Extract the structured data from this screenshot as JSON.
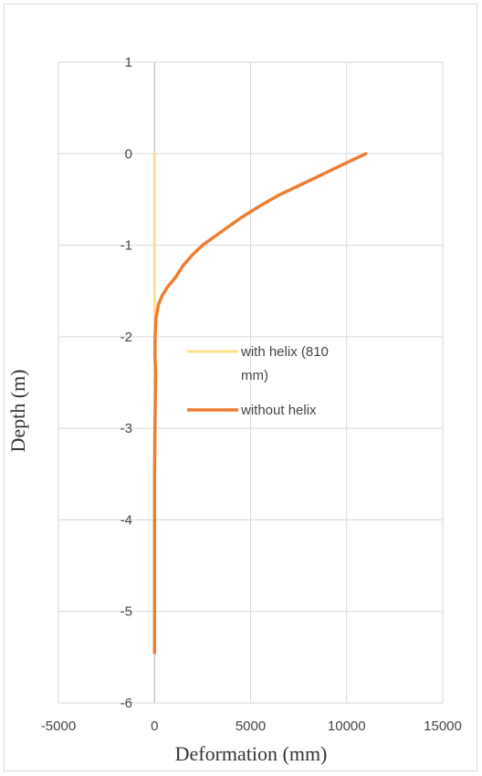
{
  "chart_data": {
    "type": "line",
    "title": "",
    "xlabel": "Deformation  (mm)",
    "ylabel": "Depth (m)",
    "xlim": [
      -5000,
      15000
    ],
    "ylim": [
      -6,
      1
    ],
    "x_ticks": [
      "-5000",
      "0",
      "5000",
      "10000",
      "15000"
    ],
    "y_ticks": [
      "1",
      "0",
      "-1",
      "-2",
      "-3",
      "-4",
      "-5",
      "-6"
    ],
    "grid": true,
    "legend_position": "center",
    "series": [
      {
        "name": "with helix (810 mm)",
        "color": "#FFE08A",
        "points": [
          [
            0,
            0
          ],
          [
            0,
            -0.5
          ],
          [
            0,
            -1.0
          ],
          [
            0,
            -1.5
          ],
          [
            0,
            -1.7
          ],
          [
            20,
            -1.9
          ],
          [
            50,
            -2.1
          ],
          [
            40,
            -2.3
          ],
          [
            0,
            -2.5
          ]
        ]
      },
      {
        "name": "without helix",
        "color": "#ED7D31",
        "points": [
          [
            11000,
            0
          ],
          [
            9500,
            -0.15
          ],
          [
            8000,
            -0.3
          ],
          [
            6500,
            -0.45
          ],
          [
            5500,
            -0.57
          ],
          [
            4500,
            -0.7
          ],
          [
            3500,
            -0.85
          ],
          [
            2500,
            -1.0
          ],
          [
            2000,
            -1.1
          ],
          [
            1500,
            -1.22
          ],
          [
            1100,
            -1.35
          ],
          [
            700,
            -1.45
          ],
          [
            400,
            -1.55
          ],
          [
            200,
            -1.65
          ],
          [
            80,
            -1.8
          ],
          [
            30,
            -2.0
          ],
          [
            20,
            -2.2
          ],
          [
            60,
            -2.4
          ],
          [
            40,
            -2.7
          ],
          [
            20,
            -3.0
          ],
          [
            0,
            -3.5
          ],
          [
            0,
            -4.0
          ],
          [
            0,
            -4.5
          ],
          [
            0,
            -5.0
          ],
          [
            0,
            -5.45
          ]
        ]
      }
    ]
  }
}
